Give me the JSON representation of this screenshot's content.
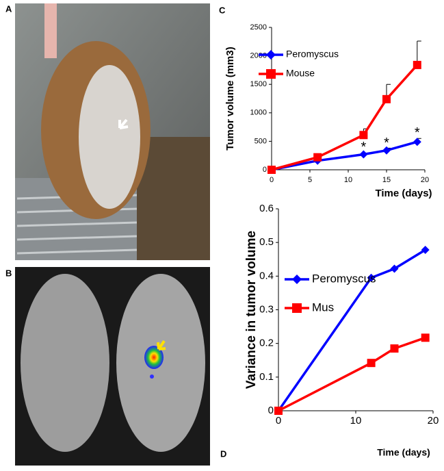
{
  "panel_labels": [
    "A",
    "B",
    "C",
    "D"
  ],
  "chart_data": [
    {
      "type": "line",
      "x_label": "Time (days)",
      "y_label": "Tumor volume (mm3)",
      "x": [
        0,
        6,
        12,
        15,
        19
      ],
      "series": [
        {
          "name": "Peromyscus",
          "color": "#0000ff",
          "marker": "diamond",
          "values": [
            0,
            160,
            270,
            340,
            490
          ],
          "errors": [
            0,
            0,
            0,
            40,
            60
          ]
        },
        {
          "name": "Mouse",
          "color": "#ff0000",
          "marker": "square",
          "values": [
            0,
            220,
            610,
            1240,
            1840
          ],
          "errors": [
            0,
            0,
            110,
            260,
            420
          ]
        }
      ],
      "annotations": [
        {
          "text": "*",
          "x": 12,
          "y": 390
        },
        {
          "text": "*",
          "x": 15,
          "y": 460
        },
        {
          "text": "*",
          "x": 19,
          "y": 640
        }
      ],
      "xlim": [
        0,
        20
      ],
      "xticks": [
        0,
        5,
        10,
        15,
        20
      ],
      "ylim": [
        0,
        2500
      ],
      "yticks": [
        0,
        500,
        1000,
        1500,
        2000,
        2500
      ]
    },
    {
      "type": "line",
      "x_label": "Time (days)",
      "y_label": "Variance in tumor volume",
      "x": [
        0,
        12,
        15,
        19
      ],
      "series": [
        {
          "name": "Peromyscus",
          "color": "#0000ff",
          "marker": "diamond",
          "values": [
            0,
            0.395,
            0.422,
            0.478
          ]
        },
        {
          "name": "Mus",
          "color": "#ff0000",
          "marker": "square",
          "values": [
            0,
            0.142,
            0.185,
            0.217
          ]
        }
      ],
      "xlim": [
        0,
        20
      ],
      "xticks": [
        0,
        10,
        20
      ],
      "ylim": [
        0,
        0.6
      ],
      "yticks": [
        0,
        0.1,
        0.2,
        0.3,
        0.4,
        0.5,
        0.6
      ]
    }
  ]
}
